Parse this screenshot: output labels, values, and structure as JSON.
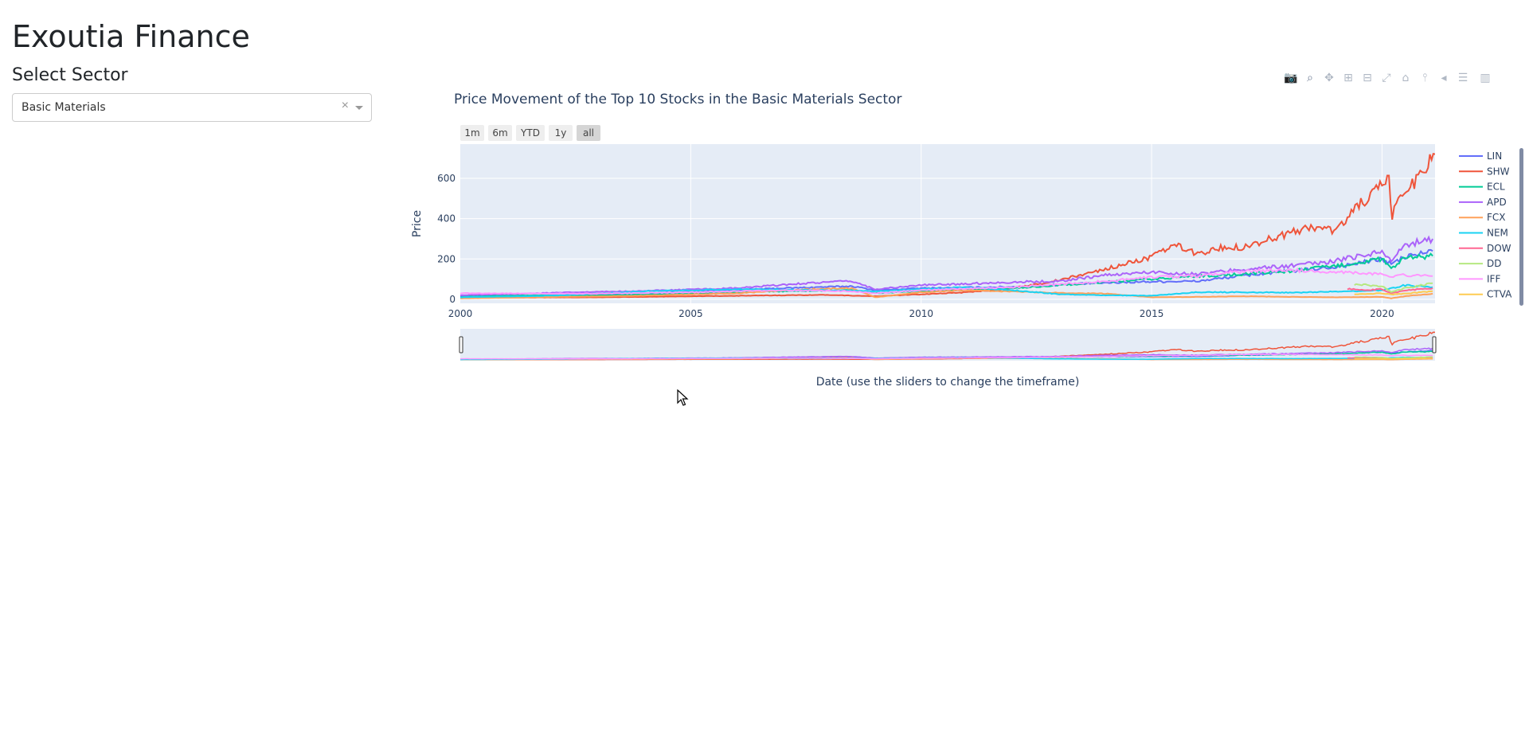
{
  "app": {
    "title": "Exoutia Finance"
  },
  "sector": {
    "label": "Select Sector",
    "selected": "Basic Materials",
    "clear_glyph": "×"
  },
  "modebar": {
    "icons": [
      "camera-icon",
      "zoom-icon",
      "pan-icon",
      "zoom-in-icon",
      "zoom-out-icon",
      "autoscale-icon",
      "reset-axes-icon",
      "spike-lines-icon",
      "hover-closest-icon",
      "hover-compare-icon",
      "plotly-logo-icon"
    ]
  },
  "range_buttons": [
    "1m",
    "6m",
    "YTD",
    "1y",
    "all"
  ],
  "active_range_button": "all",
  "colors": {
    "plot_bg": "#e5ecf6",
    "grid": "#ffffff",
    "axis_text": "#2a3f5f",
    "active_btn": "#d5d5d5",
    "btn": "#eeeeee"
  },
  "chart_data": {
    "type": "line",
    "title": "Price Movement of the Top 10 Stocks in the Basic Materials Sector",
    "xlabel": "Date (use the sliders to change the timeframe)",
    "ylabel": "Price",
    "xlim": [
      2000,
      2021.15
    ],
    "ylim": [
      -20,
      770
    ],
    "x_ticks": [
      "2000",
      "2005",
      "2010",
      "2015",
      "2020"
    ],
    "y_ticks": [
      0,
      200,
      400,
      600
    ],
    "grid": true,
    "legend_position": "right",
    "range_slider": true,
    "series": [
      {
        "name": "LIN",
        "color": "#636efa",
        "x": [
          2000,
          2003,
          2005,
          2007,
          2008.5,
          2009,
          2010,
          2012,
          2014,
          2015,
          2016,
          2017,
          2018,
          2019,
          2020,
          2020.2,
          2020.5,
          2021.1
        ],
        "values": [
          15,
          22,
          38,
          55,
          65,
          45,
          55,
          62,
          82,
          88,
          90,
          118,
          140,
          160,
          200,
          175,
          210,
          240
        ]
      },
      {
        "name": "SHW",
        "color": "#EF553B",
        "x": [
          2000,
          2003,
          2005,
          2007,
          2008,
          2009,
          2010,
          2011,
          2012,
          2013,
          2014,
          2015,
          2015.5,
          2016,
          2016.5,
          2017,
          2018,
          2018.5,
          2019,
          2019.5,
          2020,
          2020.15,
          2020.22,
          2020.4,
          2020.7,
          2021,
          2021.15
        ],
        "values": [
          8,
          10,
          15,
          20,
          22,
          15,
          25,
          35,
          55,
          95,
          150,
          210,
          270,
          225,
          255,
          260,
          330,
          360,
          340,
          470,
          560,
          590,
          410,
          520,
          580,
          680,
          720
        ]
      },
      {
        "name": "ECL",
        "color": "#00cc96",
        "x": [
          2000,
          2003,
          2005,
          2007,
          2008.5,
          2009,
          2010,
          2012,
          2014,
          2015,
          2016,
          2017,
          2018,
          2019,
          2020,
          2020.2,
          2020.5,
          2021.1
        ],
        "values": [
          18,
          20,
          30,
          40,
          45,
          30,
          40,
          55,
          85,
          100,
          115,
          125,
          140,
          165,
          200,
          150,
          205,
          215
        ]
      },
      {
        "name": "APD",
        "color": "#ab63fa",
        "x": [
          2000,
          2002,
          2004,
          2006,
          2007.5,
          2008.5,
          2009,
          2010,
          2012,
          2013,
          2014,
          2015,
          2016,
          2017,
          2018,
          2019,
          2020,
          2020.2,
          2020.5,
          2021.1
        ],
        "values": [
          20,
          32,
          42,
          55,
          80,
          90,
          50,
          70,
          85,
          90,
          120,
          135,
          125,
          150,
          165,
          190,
          240,
          190,
          270,
          300
        ]
      },
      {
        "name": "FCX",
        "color": "#FFA15A",
        "x": [
          2000,
          2004,
          2006,
          2007.5,
          2008.5,
          2009,
          2010,
          2011,
          2012,
          2013,
          2014,
          2015,
          2016,
          2017,
          2018,
          2019,
          2020,
          2020.2,
          2020.5,
          2021.1
        ],
        "values": [
          5,
          18,
          30,
          50,
          55,
          10,
          35,
          45,
          38,
          32,
          28,
          10,
          12,
          15,
          12,
          10,
          12,
          5,
          15,
          28
        ]
      },
      {
        "name": "NEM",
        "color": "#19d3f3",
        "x": [
          2000,
          2002,
          2004,
          2006,
          2008,
          2009,
          2011,
          2012,
          2013,
          2014,
          2015,
          2016,
          2017,
          2018,
          2019,
          2020,
          2020.5,
          2021.1
        ],
        "values": [
          10,
          18,
          40,
          50,
          45,
          40,
          60,
          45,
          25,
          20,
          18,
          35,
          35,
          33,
          38,
          45,
          70,
          60
        ]
      },
      {
        "name": "DOW",
        "color": "#FF6692",
        "x": [
          2019.25,
          2019.6,
          2020,
          2020.2,
          2020.5,
          2021.1
        ],
        "values": [
          52,
          45,
          50,
          30,
          45,
          55
        ]
      },
      {
        "name": "DD",
        "color": "#B6E880",
        "x": [
          2019.4,
          2019.8,
          2020,
          2020.2,
          2020.5,
          2021.1
        ],
        "values": [
          75,
          68,
          65,
          35,
          55,
          80
        ]
      },
      {
        "name": "IFF",
        "color": "#FF97FF",
        "x": [
          2000,
          2003,
          2005,
          2007,
          2008.5,
          2009,
          2010,
          2012,
          2014,
          2015,
          2016,
          2017,
          2018,
          2019,
          2020,
          2020.2,
          2020.5,
          2021.1
        ],
        "values": [
          30,
          28,
          35,
          45,
          40,
          30,
          45,
          60,
          90,
          110,
          115,
          140,
          145,
          135,
          125,
          110,
          120,
          115
        ]
      },
      {
        "name": "CTVA",
        "color": "#FECB52",
        "x": [
          2019.4,
          2019.8,
          2020,
          2020.2,
          2020.5,
          2021.1
        ],
        "values": [
          26,
          28,
          30,
          24,
          28,
          40
        ]
      }
    ]
  }
}
